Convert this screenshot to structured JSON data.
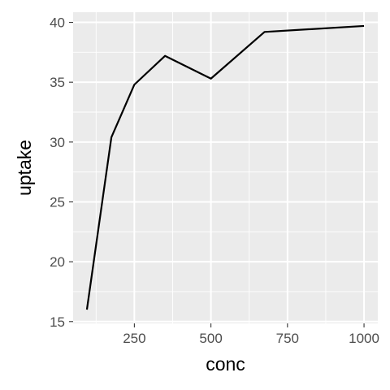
{
  "chart_data": {
    "type": "line",
    "xlabel": "conc",
    "ylabel": "uptake",
    "x": [
      95,
      175,
      250,
      350,
      500,
      675,
      1000
    ],
    "series": [
      {
        "values": [
          16.0,
          30.4,
          34.8,
          37.2,
          35.3,
          39.2,
          39.7
        ]
      }
    ],
    "xlim": [
      50,
      1045
    ],
    "ylim": [
      14.85,
      40.85
    ],
    "x_ticks": [
      250,
      500,
      750,
      1000
    ],
    "x_tick_labels": [
      "250",
      "500",
      "750",
      "1000"
    ],
    "y_ticks": [
      15,
      20,
      25,
      30,
      35,
      40
    ],
    "y_tick_labels": [
      "15",
      "20",
      "25",
      "30",
      "35",
      "40"
    ],
    "grid": true,
    "legend": "none",
    "colors": {
      "panel_background": "#ebebeb",
      "grid_line": "#ffffff",
      "series_line": "#000000",
      "tick_text": "#4d4d4d",
      "axis_title": "#000000"
    }
  }
}
